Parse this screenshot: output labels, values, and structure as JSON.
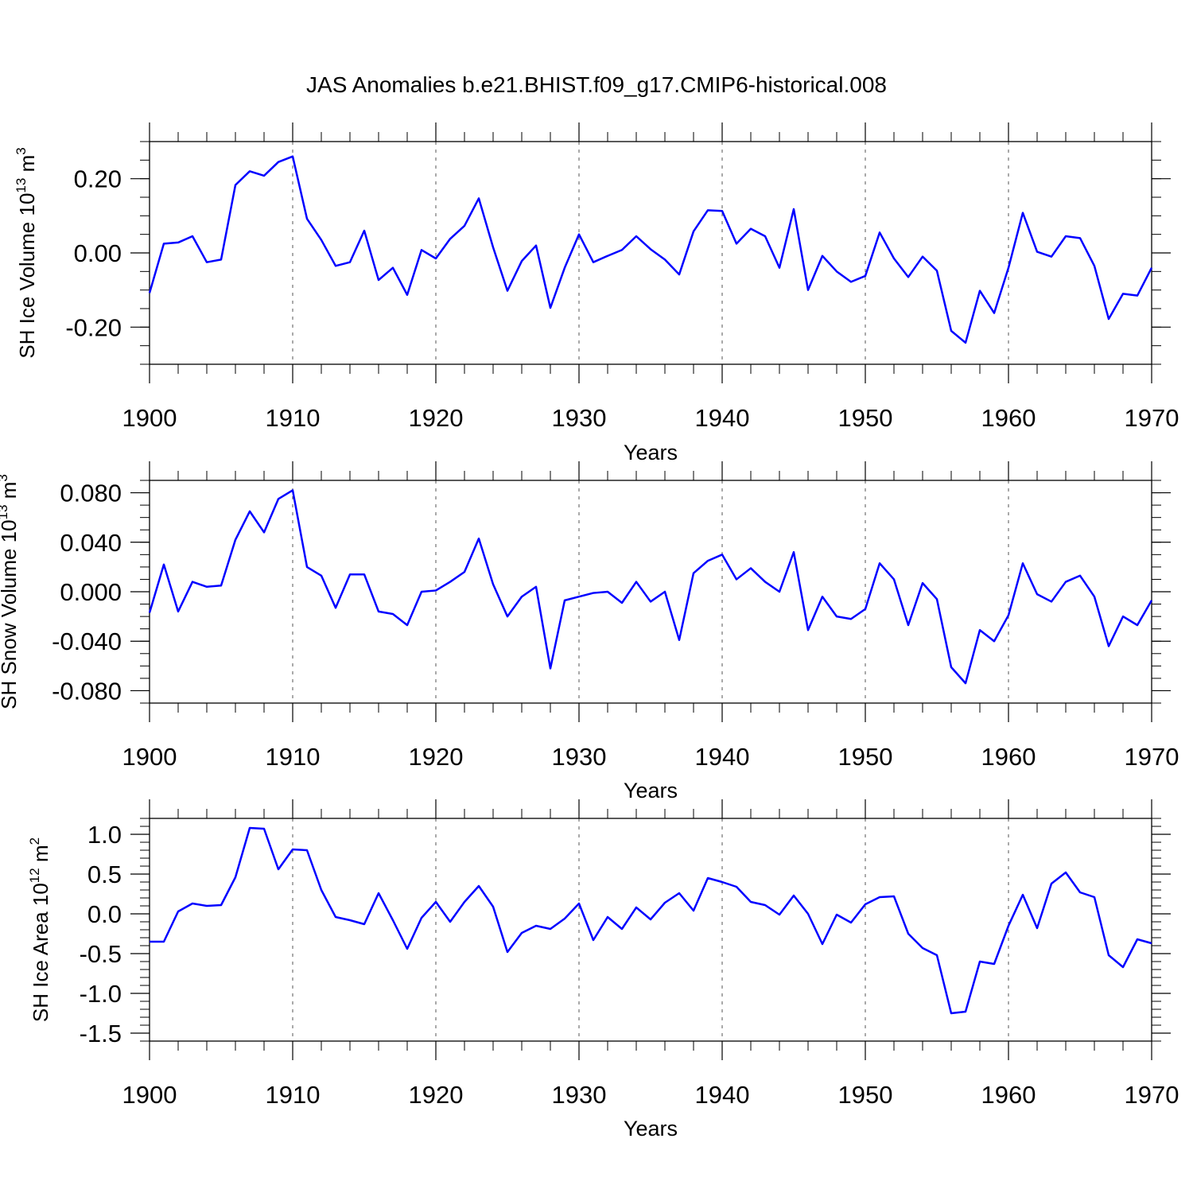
{
  "title": "JAS Anomalies b.e21.BHIST.f09_g17.CMIP6-historical.008",
  "line_color": "#0000ff",
  "chart_data": [
    {
      "type": "line",
      "ylabel_prefix": "SH Ice Volume 10",
      "ylabel_exp": "13",
      "ylabel_unit": " m",
      "ylabel_unit_exp": "3",
      "xlabel": "Years",
      "xlim": [
        1900,
        1970
      ],
      "ylim": [
        -0.3,
        0.3
      ],
      "yticks": [
        -0.2,
        0.0,
        0.2
      ],
      "ytick_labels": [
        "-0.20",
        "0.00",
        "0.20"
      ],
      "yminor_step": 0.05,
      "xticks": [
        1900,
        1910,
        1920,
        1930,
        1940,
        1950,
        1960,
        1970
      ],
      "xtick_labels": [
        "1900",
        "1910",
        "1920",
        "1930",
        "1940",
        "1950",
        "1960",
        "1970"
      ],
      "grid_x": [
        1910,
        1920,
        1930,
        1940,
        1950,
        1960
      ],
      "series": [
        {
          "name": "SH Ice Volume",
          "x_start": 1900,
          "values": [
            -0.108,
            0.025,
            0.028,
            0.045,
            -0.025,
            -0.018,
            0.183,
            0.22,
            0.208,
            0.245,
            0.26,
            0.092,
            0.035,
            -0.035,
            -0.025,
            0.06,
            -0.073,
            -0.04,
            -0.113,
            0.008,
            -0.015,
            0.038,
            0.073,
            0.147,
            0.015,
            -0.102,
            -0.022,
            0.02,
            -0.148,
            -0.04,
            0.05,
            -0.025,
            -0.008,
            0.008,
            0.045,
            0.01,
            -0.018,
            -0.058,
            0.058,
            0.115,
            0.113,
            0.025,
            0.065,
            0.045,
            -0.04,
            0.118,
            -0.1,
            -0.008,
            -0.05,
            -0.078,
            -0.062,
            0.055,
            -0.015,
            -0.065,
            -0.01,
            -0.048,
            -0.21,
            -0.242,
            -0.102,
            -0.162,
            -0.04,
            0.108,
            0.003,
            -0.01,
            0.045,
            0.04,
            -0.035,
            -0.178,
            -0.11,
            -0.115,
            -0.04
          ]
        }
      ]
    },
    {
      "type": "line",
      "ylabel_prefix": "SH Snow Volume 10",
      "ylabel_exp": "13",
      "ylabel_unit": " m",
      "ylabel_unit_exp": "3",
      "xlabel": "Years",
      "xlim": [
        1900,
        1970
      ],
      "ylim": [
        -0.09,
        0.09
      ],
      "yticks": [
        -0.08,
        -0.04,
        0.0,
        0.04,
        0.08
      ],
      "ytick_labels": [
        "-0.080",
        "-0.040",
        "0.000",
        "0.040",
        "0.080"
      ],
      "yminor_step": 0.01,
      "xticks": [
        1900,
        1910,
        1920,
        1930,
        1940,
        1950,
        1960,
        1970
      ],
      "xtick_labels": [
        "1900",
        "1910",
        "1920",
        "1930",
        "1940",
        "1950",
        "1960",
        "1970"
      ],
      "grid_x": [
        1910,
        1920,
        1930,
        1940,
        1950,
        1960
      ],
      "series": [
        {
          "name": "SH Snow Volume",
          "x_start": 1900,
          "values": [
            -0.017,
            0.022,
            -0.016,
            0.008,
            0.004,
            0.005,
            0.042,
            0.065,
            0.048,
            0.075,
            0.082,
            0.02,
            0.013,
            -0.013,
            0.014,
            0.014,
            -0.016,
            -0.018,
            -0.027,
            0.0,
            0.001,
            0.008,
            0.016,
            0.043,
            0.006,
            -0.02,
            -0.004,
            0.004,
            -0.062,
            -0.007,
            -0.004,
            -0.001,
            0.0,
            -0.009,
            0.008,
            -0.008,
            0.0,
            -0.039,
            0.015,
            0.025,
            0.03,
            0.01,
            0.019,
            0.008,
            0.0,
            0.032,
            -0.031,
            -0.004,
            -0.02,
            -0.022,
            -0.014,
            0.023,
            0.01,
            -0.027,
            0.007,
            -0.006,
            -0.061,
            -0.074,
            -0.031,
            -0.04,
            -0.019,
            0.023,
            -0.002,
            -0.008,
            0.008,
            0.013,
            -0.004,
            -0.044,
            -0.02,
            -0.027,
            -0.007
          ]
        }
      ]
    },
    {
      "type": "line",
      "ylabel_prefix": "SH Ice Area 10",
      "ylabel_exp": "12",
      "ylabel_unit": " m",
      "ylabel_unit_exp": "2",
      "xlabel": "Years",
      "xlim": [
        1900,
        1970
      ],
      "ylim": [
        -1.6,
        1.2
      ],
      "yticks": [
        -1.5,
        -1.0,
        -0.5,
        0.0,
        0.5,
        1.0
      ],
      "ytick_labels": [
        "-1.5",
        "-1.0",
        "-0.5",
        "0.0",
        "0.5",
        "1.0"
      ],
      "yminor_step": 0.1,
      "xticks": [
        1900,
        1910,
        1920,
        1930,
        1940,
        1950,
        1960,
        1970
      ],
      "xtick_labels": [
        "1900",
        "1910",
        "1920",
        "1930",
        "1940",
        "1950",
        "1960",
        "1970"
      ],
      "grid_x": [
        1910,
        1920,
        1930,
        1940,
        1950,
        1960
      ],
      "series": [
        {
          "name": "SH Ice Area",
          "x_start": 1900,
          "values": [
            -0.35,
            -0.35,
            0.03,
            0.13,
            0.1,
            0.11,
            0.46,
            1.08,
            1.07,
            0.56,
            0.81,
            0.8,
            0.3,
            -0.04,
            -0.08,
            -0.13,
            0.26,
            -0.08,
            -0.44,
            -0.05,
            0.15,
            -0.1,
            0.15,
            0.35,
            0.09,
            -0.48,
            -0.24,
            -0.15,
            -0.19,
            -0.06,
            0.13,
            -0.33,
            -0.04,
            -0.19,
            0.08,
            -0.07,
            0.14,
            0.26,
            0.04,
            0.45,
            0.4,
            0.34,
            0.15,
            0.11,
            -0.01,
            0.23,
            0.0,
            -0.38,
            -0.01,
            -0.11,
            0.12,
            0.21,
            0.22,
            -0.25,
            -0.43,
            -0.52,
            -1.25,
            -1.23,
            -0.6,
            -0.63,
            -0.15,
            0.24,
            -0.18,
            0.38,
            0.52,
            0.27,
            0.21,
            -0.52,
            -0.67,
            -0.32,
            -0.37
          ]
        }
      ]
    }
  ]
}
